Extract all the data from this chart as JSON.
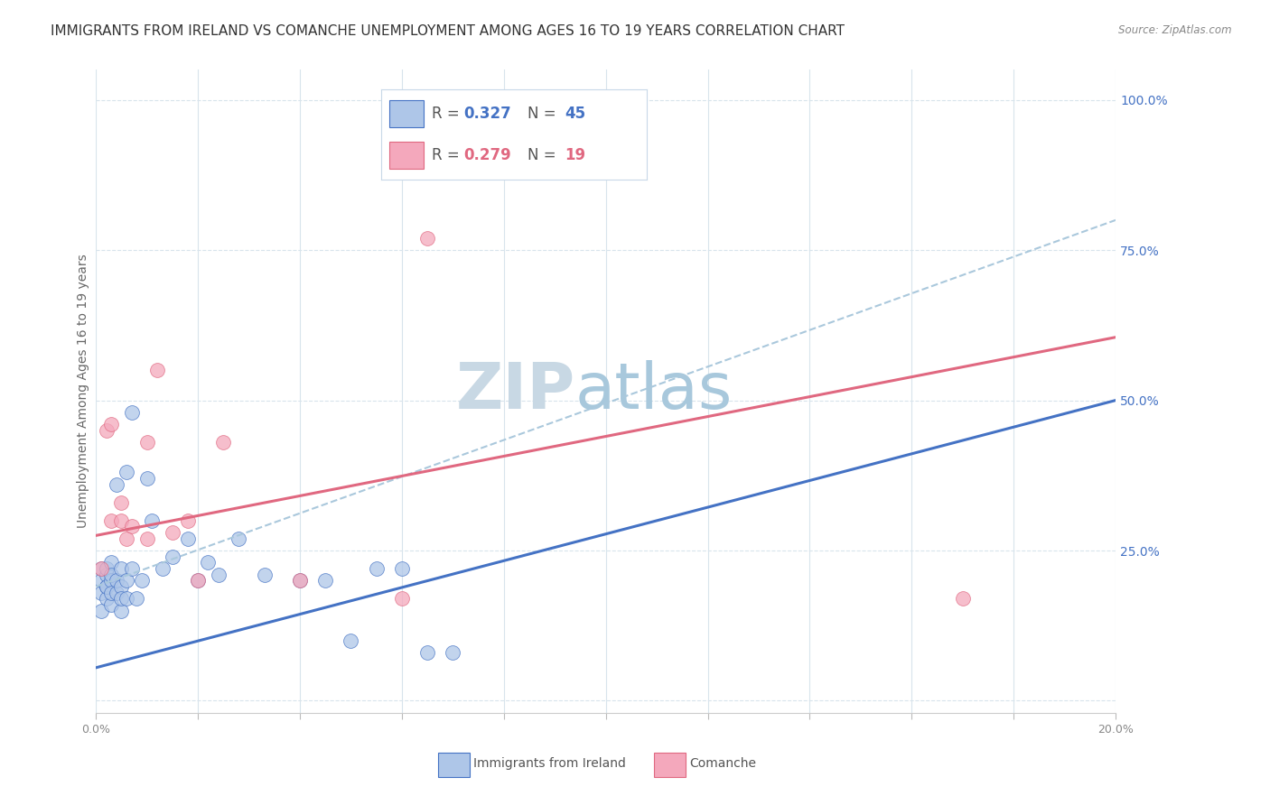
{
  "title": "IMMIGRANTS FROM IRELAND VS COMANCHE UNEMPLOYMENT AMONG AGES 16 TO 19 YEARS CORRELATION CHART",
  "source": "Source: ZipAtlas.com",
  "ylabel": "Unemployment Among Ages 16 to 19 years",
  "xlim": [
    0.0,
    0.2
  ],
  "ylim": [
    -0.02,
    1.05
  ],
  "yticks": [
    0.0,
    0.25,
    0.5,
    0.75,
    1.0
  ],
  "xticks": [
    0.0,
    0.02,
    0.04,
    0.06,
    0.08,
    0.1,
    0.12,
    0.14,
    0.16,
    0.18,
    0.2
  ],
  "xtick_labels": [
    "0.0%",
    "",
    "",
    "",
    "",
    "",
    "",
    "",
    "",
    "",
    "20.0%"
  ],
  "color_ireland": "#aec6e8",
  "color_comanche": "#f4a8bc",
  "color_ireland_line": "#4472c4",
  "color_comanche_line": "#e06880",
  "color_dashed": "#aac8dc",
  "ireland_x": [
    0.001,
    0.001,
    0.001,
    0.001,
    0.002,
    0.002,
    0.002,
    0.002,
    0.002,
    0.003,
    0.003,
    0.003,
    0.003,
    0.003,
    0.004,
    0.004,
    0.004,
    0.005,
    0.005,
    0.005,
    0.005,
    0.006,
    0.006,
    0.006,
    0.007,
    0.007,
    0.008,
    0.009,
    0.01,
    0.011,
    0.013,
    0.015,
    0.018,
    0.02,
    0.022,
    0.024,
    0.028,
    0.033,
    0.04,
    0.045,
    0.05,
    0.055,
    0.06,
    0.065,
    0.07
  ],
  "ireland_y": [
    0.18,
    0.2,
    0.22,
    0.15,
    0.19,
    0.21,
    0.17,
    0.22,
    0.19,
    0.2,
    0.16,
    0.23,
    0.18,
    0.21,
    0.36,
    0.18,
    0.2,
    0.22,
    0.19,
    0.15,
    0.17,
    0.38,
    0.2,
    0.17,
    0.48,
    0.22,
    0.17,
    0.2,
    0.37,
    0.3,
    0.22,
    0.24,
    0.27,
    0.2,
    0.23,
    0.21,
    0.27,
    0.21,
    0.2,
    0.2,
    0.1,
    0.22,
    0.22,
    0.08,
    0.08
  ],
  "comanche_x": [
    0.001,
    0.002,
    0.003,
    0.003,
    0.005,
    0.005,
    0.006,
    0.007,
    0.01,
    0.01,
    0.012,
    0.015,
    0.018,
    0.02,
    0.025,
    0.04,
    0.06,
    0.065,
    0.17
  ],
  "comanche_y": [
    0.22,
    0.45,
    0.46,
    0.3,
    0.3,
    0.33,
    0.27,
    0.29,
    0.43,
    0.27,
    0.55,
    0.28,
    0.3,
    0.2,
    0.43,
    0.2,
    0.17,
    0.77,
    0.17
  ],
  "ireland_line_x": [
    0.0,
    0.2
  ],
  "ireland_line_y": [
    0.055,
    0.5
  ],
  "comanche_line_x": [
    0.0,
    0.2
  ],
  "comanche_line_y": [
    0.275,
    0.605
  ],
  "dashed_line_x": [
    0.0,
    0.2
  ],
  "dashed_line_y": [
    0.19,
    0.8
  ],
  "background_color": "#ffffff",
  "grid_color": "#d8e4ec",
  "title_fontsize": 11,
  "axis_label_fontsize": 10,
  "tick_label_fontsize": 9,
  "legend_fontsize": 12,
  "watermark_zip": "ZIP",
  "watermark_atlas": "atlas",
  "watermark_color_zip": "#c8d8e4",
  "watermark_color_atlas": "#a8c8dc",
  "watermark_fontsize": 52
}
